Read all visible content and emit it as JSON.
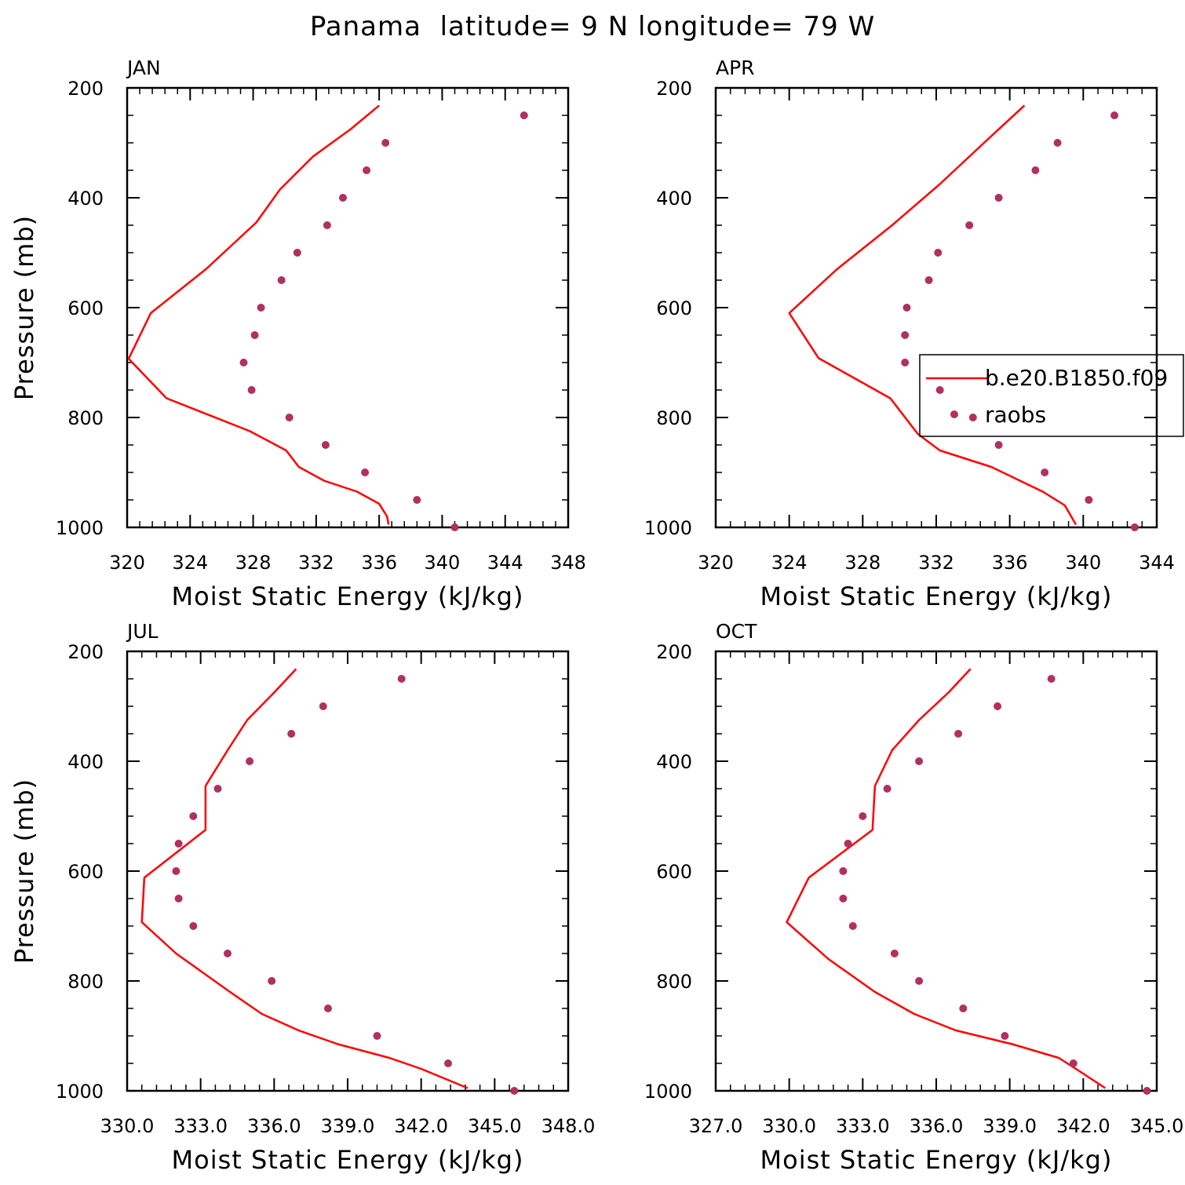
{
  "figure": {
    "title": "Panama  latitude= 9 N longitude= 79 W"
  },
  "colors": {
    "model": "#ff0000",
    "obs": "#b03060",
    "frame": "#000000"
  },
  "legend": {
    "model_label": "b.e20.B1850.f09",
    "obs_label": "raobs",
    "panel": "APR"
  },
  "chart_data": [
    {
      "type": "line",
      "panel": "JAN",
      "title": "JAN",
      "xlabel": "Moist Static Energy (kJ/kg)",
      "ylabel": "Pressure (mb)",
      "xlim": [
        320,
        348
      ],
      "ylim": [
        1000,
        200
      ],
      "xticks": [
        320,
        324,
        328,
        332,
        336,
        340,
        344,
        348
      ],
      "xtick_labels": [
        "320",
        "324",
        "328",
        "332",
        "336",
        "340",
        "344",
        "348"
      ],
      "yticks": [
        200,
        400,
        600,
        800,
        1000
      ],
      "ytick_labels": [
        "200",
        "400",
        "600",
        "800",
        "1000"
      ],
      "series": [
        {
          "name": "b.e20.B1850.f09",
          "kind": "line",
          "x": [
            336.0,
            334.2,
            331.8,
            329.7,
            328.2,
            325.0,
            321.5,
            320.1,
            322.5,
            327.8,
            330.1,
            330.9,
            332.5,
            334.6,
            336.0,
            336.5,
            336.6
          ],
          "y": [
            232,
            275,
            325,
            385,
            445,
            530,
            610,
            693,
            765,
            825,
            860,
            890,
            915,
            935,
            957,
            980,
            995
          ]
        },
        {
          "name": "raobs",
          "kind": "scatter",
          "x": [
            345.2,
            336.4,
            335.2,
            333.7,
            332.7,
            330.8,
            329.8,
            328.5,
            328.1,
            327.4,
            327.9,
            330.3,
            332.6,
            335.1,
            338.4,
            340.8
          ],
          "y": [
            250,
            300,
            350,
            400,
            450,
            500,
            550,
            600,
            650,
            700,
            750,
            800,
            850,
            900,
            950,
            1000
          ]
        }
      ]
    },
    {
      "type": "line",
      "panel": "APR",
      "title": "APR",
      "xlabel": "Moist Static Energy (kJ/kg)",
      "ylabel": "",
      "xlim": [
        320,
        344
      ],
      "ylim": [
        1000,
        200
      ],
      "xticks": [
        320,
        324,
        328,
        332,
        336,
        340,
        344
      ],
      "xtick_labels": [
        "320",
        "324",
        "328",
        "332",
        "336",
        "340",
        "344"
      ],
      "yticks": [
        200,
        400,
        600,
        800,
        1000
      ],
      "ytick_labels": [
        "200",
        "400",
        "600",
        "800",
        "1000"
      ],
      "series": [
        {
          "name": "b.e20.B1850.f09",
          "kind": "line",
          "x": [
            336.8,
            334.6,
            332.2,
            329.6,
            326.6,
            324.0,
            325.6,
            329.5,
            331.0,
            332.2,
            335.0,
            337.8,
            339.0,
            339.6
          ],
          "y": [
            232,
            300,
            375,
            450,
            530,
            610,
            692,
            765,
            830,
            860,
            890,
            935,
            960,
            995
          ]
        },
        {
          "name": "raobs",
          "kind": "scatter",
          "x": [
            341.7,
            338.6,
            337.4,
            335.4,
            333.8,
            332.1,
            331.6,
            330.4,
            330.3,
            330.3,
            332.2,
            334.0,
            335.4,
            337.9,
            340.3,
            342.8
          ],
          "y": [
            250,
            300,
            350,
            400,
            450,
            500,
            550,
            600,
            650,
            700,
            750,
            800,
            850,
            900,
            950,
            1000
          ]
        }
      ]
    },
    {
      "type": "line",
      "panel": "JUL",
      "title": "JUL",
      "xlabel": "Moist Static Energy (kJ/kg)",
      "ylabel": "Pressure (mb)",
      "xlim": [
        330,
        348
      ],
      "ylim": [
        1000,
        200
      ],
      "xticks": [
        330,
        333,
        336,
        339,
        342,
        345,
        348
      ],
      "xtick_labels": [
        "330.0",
        "333.0",
        "336.0",
        "339.0",
        "342.0",
        "345.0",
        "348.0"
      ],
      "yticks": [
        200,
        400,
        600,
        800,
        1000
      ],
      "ytick_labels": [
        "200",
        "400",
        "600",
        "800",
        "1000"
      ],
      "series": [
        {
          "name": "b.e20.B1850.f09",
          "kind": "line",
          "x": [
            336.9,
            336.0,
            334.9,
            334.1,
            333.2,
            333.2,
            330.7,
            330.6,
            332.0,
            334.2,
            335.5,
            337.0,
            338.6,
            340.7,
            342.0,
            343.9
          ],
          "y": [
            232,
            275,
            325,
            380,
            445,
            525,
            612,
            693,
            750,
            820,
            860,
            890,
            915,
            940,
            960,
            995
          ]
        },
        {
          "name": "raobs",
          "kind": "scatter",
          "x": [
            341.2,
            338.0,
            336.7,
            335.0,
            333.7,
            332.7,
            332.1,
            332.0,
            332.1,
            332.7,
            334.1,
            335.9,
            338.2,
            340.2,
            343.1,
            345.8
          ],
          "y": [
            250,
            300,
            350,
            400,
            450,
            500,
            550,
            600,
            650,
            700,
            750,
            800,
            850,
            900,
            950,
            1000
          ]
        }
      ]
    },
    {
      "type": "line",
      "panel": "OCT",
      "title": "OCT",
      "xlabel": "Moist Static Energy (kJ/kg)",
      "ylabel": "",
      "xlim": [
        327,
        345
      ],
      "ylim": [
        1000,
        200
      ],
      "xticks": [
        327,
        330,
        333,
        336,
        339,
        342,
        345
      ],
      "xtick_labels": [
        "327.0",
        "330.0",
        "333.0",
        "336.0",
        "339.0",
        "342.0",
        "345.0"
      ],
      "yticks": [
        200,
        400,
        600,
        800,
        1000
      ],
      "ytick_labels": [
        "200",
        "400",
        "600",
        "800",
        "1000"
      ],
      "series": [
        {
          "name": "b.e20.B1850.f09",
          "kind": "line",
          "x": [
            337.4,
            336.5,
            335.3,
            334.2,
            333.5,
            333.4,
            330.8,
            329.9,
            331.6,
            333.5,
            335.1,
            336.8,
            339.1,
            341.0,
            341.7,
            342.9
          ],
          "y": [
            232,
            275,
            325,
            380,
            445,
            525,
            612,
            693,
            760,
            820,
            860,
            890,
            915,
            940,
            960,
            995
          ]
        },
        {
          "name": "raobs",
          "kind": "scatter",
          "x": [
            340.7,
            338.5,
            336.9,
            335.3,
            334.0,
            333.0,
            332.4,
            332.2,
            332.2,
            332.6,
            334.3,
            335.3,
            337.1,
            338.8,
            341.6,
            344.6
          ],
          "y": [
            250,
            300,
            350,
            400,
            450,
            500,
            550,
            600,
            650,
            700,
            750,
            800,
            850,
            900,
            950,
            1000
          ]
        }
      ]
    }
  ]
}
